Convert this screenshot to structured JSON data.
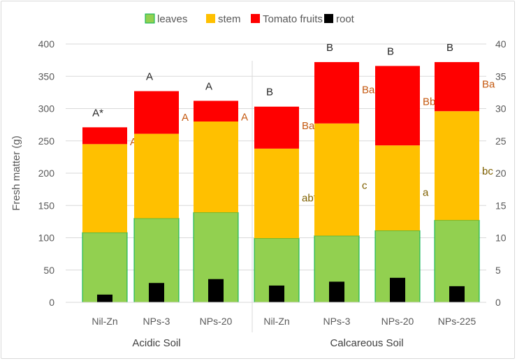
{
  "chart_data": {
    "type": "bar",
    "stacked": true,
    "title": "",
    "ylabel": "Fresh matter (g)",
    "ylim": [
      0,
      400
    ],
    "y_ticks": [
      0,
      50,
      100,
      150,
      200,
      250,
      300,
      350,
      400
    ],
    "y2lim": [
      0,
      40
    ],
    "y2_ticks": [
      0,
      5,
      10,
      15,
      20,
      25,
      30,
      35,
      40
    ],
    "grid": true,
    "legend_position": "top",
    "categories": [
      "Nil-Zn",
      "NPs-3",
      "NPs-20",
      "Nil-Zn",
      "NPs-3",
      "NPs-20",
      "NPs-225"
    ],
    "groups": [
      {
        "label": "Acidic Soil",
        "count": 3
      },
      {
        "label": "Calcareous Soil",
        "count": 4
      }
    ],
    "series": [
      {
        "name": "leaves",
        "color": "#92d050",
        "values": [
          108,
          130,
          139,
          99,
          103,
          111,
          127
        ],
        "axis": "left"
      },
      {
        "name": "stem",
        "color": "#ffc000",
        "values": [
          137,
          131,
          141,
          139,
          174,
          132,
          169
        ],
        "axis": "left"
      },
      {
        "name": "Tomato fruits",
        "color": "#ff0000",
        "values": [
          26,
          66,
          32,
          65,
          95,
          123,
          76
        ],
        "axis": "left"
      },
      {
        "name": "root",
        "color": "#000000",
        "values": [
          1.2,
          3.0,
          3.6,
          2.6,
          3.2,
          3.8,
          2.5
        ],
        "axis": "right"
      }
    ],
    "annotations": {
      "top": [
        "A*",
        "A",
        "A",
        "B",
        "B",
        "B",
        "B"
      ],
      "fruit": [
        "A*",
        "A",
        "A",
        "Ba*",
        "Bab",
        "Bb",
        "Ba"
      ],
      "stem": [
        "",
        "",
        "",
        "ab*",
        "c",
        "a",
        "bc"
      ]
    },
    "colors": {
      "axis": "#d9d9d9",
      "grid": "#d9d9d9",
      "tick_text": "#595959",
      "annotation_brown": "#c55a11",
      "annotation_olive": "#7f6000",
      "top_text": "#262626"
    }
  }
}
